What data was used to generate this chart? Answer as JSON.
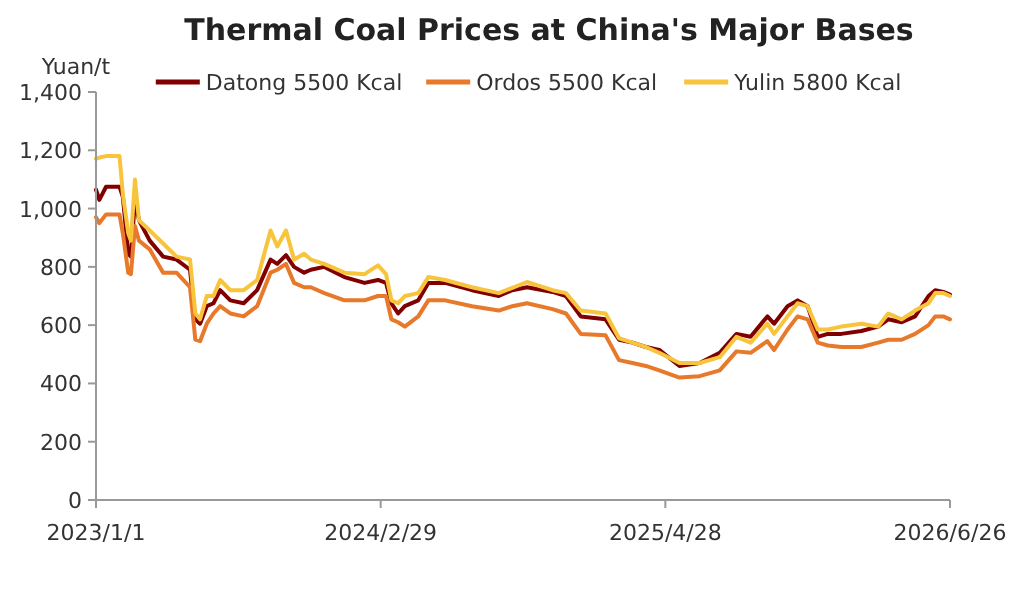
{
  "chart_data": {
    "type": "line",
    "title": "Thermal Coal Prices at China's Major Bases",
    "ylabel": "Yuan/t",
    "x": [
      "2023-01-01",
      "2023-01-06",
      "2023-01-16",
      "2023-02-05",
      "2023-02-10",
      "2023-02-18",
      "2023-02-22",
      "2023-02-28",
      "2023-03-06",
      "2023-03-22",
      "2023-04-11",
      "2023-05-01",
      "2023-05-21",
      "2023-05-29",
      "2023-06-05",
      "2023-06-15",
      "2023-06-25",
      "2023-07-05",
      "2023-07-20",
      "2023-08-09",
      "2023-08-29",
      "2023-09-18",
      "2023-09-28",
      "2023-10-11",
      "2023-10-23",
      "2023-11-07",
      "2023-11-17",
      "2023-12-07",
      "2024-01-06",
      "2024-02-05",
      "2024-02-25",
      "2024-03-08",
      "2024-03-16",
      "2024-03-26",
      "2024-04-05",
      "2024-04-25",
      "2024-05-10",
      "2024-06-04",
      "2024-07-14",
      "2024-08-23",
      "2024-09-12",
      "2024-10-04",
      "2024-11-11",
      "2024-12-01",
      "2024-12-23",
      "2025-01-29",
      "2025-02-18",
      "2025-03-10",
      "2025-03-30",
      "2025-04-19",
      "2025-05-19",
      "2025-06-18",
      "2025-07-18",
      "2025-08-12",
      "2025-09-02",
      "2025-09-27",
      "2025-10-07",
      "2025-10-27",
      "2025-11-11",
      "2025-11-26",
      "2025-12-11",
      "2025-12-26",
      "2026-01-15",
      "2026-02-14",
      "2026-03-11",
      "2026-03-26",
      "2026-04-15",
      "2026-05-05",
      "2026-05-25",
      "2026-06-04",
      "2026-06-16",
      "2026-06-26"
    ],
    "series": [
      {
        "name": "Datong 5500 Kcal",
        "color": "#800000",
        "values": [
          1065,
          1030,
          1075,
          1075,
          1040,
          845,
          835,
          1030,
          960,
          890,
          835,
          825,
          790,
          620,
          605,
          665,
          675,
          720,
          685,
          675,
          720,
          825,
          810,
          840,
          800,
          780,
          790,
          800,
          765,
          745,
          755,
          745,
          675,
          640,
          665,
          685,
          745,
          745,
          720,
          700,
          720,
          730,
          714,
          700,
          630,
          620,
          550,
          540,
          525,
          515,
          460,
          470,
          505,
          570,
          560,
          630,
          605,
          665,
          685,
          665,
          560,
          570,
          570,
          580,
          595,
          620,
          610,
          630,
          700,
          720,
          714,
          705
        ]
      },
      {
        "name": "Ordos 5500 Kcal",
        "color": "#e8782a",
        "values": [
          970,
          950,
          980,
          980,
          915,
          780,
          775,
          940,
          890,
          860,
          780,
          780,
          730,
          550,
          545,
          605,
          640,
          665,
          640,
          630,
          665,
          780,
          790,
          810,
          745,
          730,
          730,
          710,
          685,
          685,
          700,
          700,
          620,
          610,
          595,
          630,
          685,
          685,
          665,
          650,
          665,
          675,
          655,
          640,
          570,
          565,
          480,
          470,
          460,
          445,
          420,
          425,
          445,
          510,
          505,
          545,
          515,
          585,
          630,
          620,
          540,
          530,
          525,
          525,
          540,
          550,
          550,
          570,
          600,
          630,
          630,
          620
        ]
      },
      {
        "name": "Yulin 5800 Kcal",
        "color": "#f7c43c",
        "values": [
          1171,
          1175,
          1180,
          1180,
          1050,
          915,
          890,
          1100,
          960,
          925,
          880,
          835,
          825,
          640,
          620,
          700,
          700,
          755,
          720,
          720,
          755,
          925,
          870,
          925,
          825,
          845,
          825,
          810,
          780,
          775,
          805,
          775,
          685,
          675,
          700,
          710,
          765,
          755,
          730,
          710,
          728,
          748,
          720,
          710,
          650,
          640,
          555,
          540,
          525,
          505,
          470,
          470,
          490,
          560,
          540,
          605,
          570,
          630,
          675,
          665,
          585,
          585,
          595,
          605,
          595,
          640,
          620,
          650,
          675,
          710,
          710,
          700
        ]
      }
    ],
    "xlim": [
      "2023-01-01",
      "2026-06-26"
    ],
    "xticks": [
      {
        "value": "2023-01-01",
        "label": "2023/1/1"
      },
      {
        "value": "2024-02-29",
        "label": "2024/2/29"
      },
      {
        "value": "2025-04-28",
        "label": "2025/4/28"
      },
      {
        "value": "2026-06-26",
        "label": "2026/6/26"
      }
    ],
    "ylim": [
      0,
      1400
    ],
    "yticks": [
      0,
      200,
      400,
      600,
      800,
      {
        "value": 1000,
        "label": "1,000"
      },
      {
        "value": 1200,
        "label": "1,200"
      },
      {
        "value": 1400,
        "label": "1,400"
      }
    ],
    "legend": "top",
    "line_style": "solid"
  }
}
